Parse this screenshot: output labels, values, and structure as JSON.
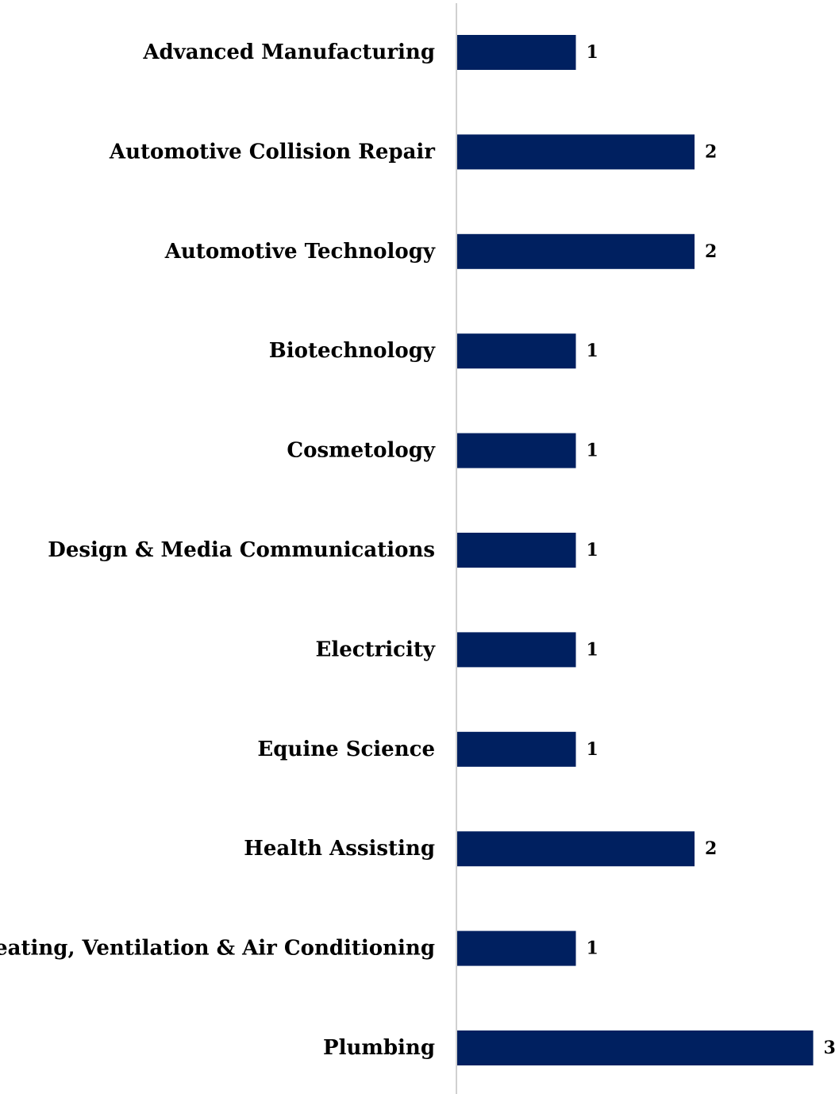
{
  "chart_data": {
    "type": "bar",
    "orientation": "horizontal",
    "categories": [
      "Advanced Manufacturing",
      "Automotive Collision Repair",
      "Automotive Technology",
      "Biotechnology",
      "Cosmetology",
      "Design & Media Communications",
      "Electricity",
      "Equine Science",
      "Health Assisting",
      "Heating, Ventilation & Air Conditioning",
      "Plumbing"
    ],
    "values": [
      1,
      2,
      2,
      1,
      1,
      1,
      1,
      1,
      2,
      1,
      3
    ],
    "xlim": [
      0,
      3
    ],
    "grid": false,
    "legend": "none",
    "bar_color": "#002060",
    "axis_color": "#d0d0d0"
  }
}
